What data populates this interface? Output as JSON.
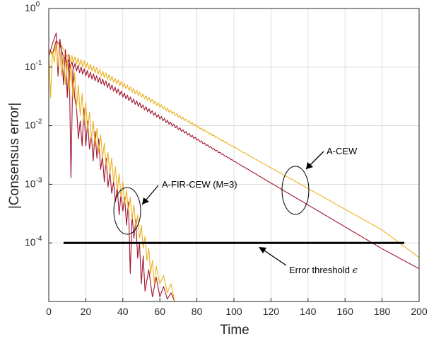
{
  "chart_data": {
    "type": "line",
    "xlabel": "Time",
    "ylabel": "|Consensus error|",
    "xlim": [
      0,
      200
    ],
    "ylim": [
      1e-05,
      1
    ],
    "yscale": "log",
    "grid": true,
    "x_ticks": [
      "0",
      "20",
      "40",
      "60",
      "80",
      "100",
      "120",
      "140",
      "160",
      "180",
      "200"
    ],
    "y_ticks": [
      {
        "base": "10",
        "exp": "0",
        "value": 1
      },
      {
        "base": "10",
        "exp": "-1",
        "value": 0.1
      },
      {
        "base": "10",
        "exp": "-2",
        "value": 0.01
      },
      {
        "base": "10",
        "exp": "-3",
        "value": 0.001
      },
      {
        "base": "10",
        "exp": "-4",
        "value": 0.0001
      }
    ],
    "colors": {
      "red": "#a2142f",
      "yellow": "#edb120",
      "threshold": "#000000",
      "grid": "#d9d9d9"
    },
    "series": [
      {
        "color": "#a2142f",
        "points": [
          [
            0,
            0.2
          ],
          [
            2,
            0.17
          ],
          [
            4,
            0.28
          ],
          [
            6,
            0.24
          ],
          [
            8,
            0.15
          ],
          [
            10,
            0.12
          ],
          [
            20,
            0.08
          ],
          [
            30,
            0.054
          ],
          [
            40,
            0.034
          ],
          [
            60,
            0.0139
          ],
          [
            80,
            0.00587
          ],
          [
            100,
            0.00249
          ],
          [
            120,
            0.00105
          ],
          [
            140,
            0.000444
          ],
          [
            160,
            0.000188
          ],
          [
            180,
            7.94e-05
          ],
          [
            200,
            3.63e-05
          ]
        ],
        "ripple": 0.06
      },
      {
        "color": "#edb120",
        "points": [
          [
            0,
            0.2
          ],
          [
            2,
            0.16
          ],
          [
            4,
            0.24
          ],
          [
            6,
            0.26
          ],
          [
            8,
            0.2
          ],
          [
            10,
            0.15
          ],
          [
            20,
            0.11
          ],
          [
            30,
            0.074
          ],
          [
            40,
            0.05
          ],
          [
            60,
            0.0221
          ],
          [
            80,
            0.00977
          ],
          [
            100,
            0.00432
          ],
          [
            120,
            0.00191
          ],
          [
            140,
            0.000848
          ],
          [
            160,
            0.000375
          ],
          [
            180,
            0.000166
          ],
          [
            200,
            5.62e-05
          ]
        ],
        "ripple": 0.06
      },
      {
        "color": "#a2142f",
        "points": [
          [
            0,
            0.15
          ],
          [
            2,
            0.25
          ],
          [
            4,
            0.38
          ],
          [
            5,
            0.07
          ],
          [
            6,
            0.3
          ],
          [
            7,
            0.18
          ],
          [
            8,
            0.05
          ],
          [
            9,
            0.2
          ],
          [
            10,
            0.03
          ],
          [
            11,
            0.16
          ],
          [
            12,
            0.0013
          ],
          [
            13,
            0.09
          ],
          [
            14,
            0.03
          ],
          [
            15,
            0.02
          ],
          [
            16,
            0.006
          ],
          [
            17,
            0.012
          ],
          [
            18,
            0.0045
          ],
          [
            19,
            0.02
          ],
          [
            20,
            0.0045
          ],
          [
            21,
            0.012
          ],
          [
            22,
            0.004
          ],
          [
            23,
            0.007
          ],
          [
            24,
            0.0025
          ],
          [
            25,
            0.008
          ],
          [
            26,
            0.0028
          ],
          [
            27,
            0.006
          ],
          [
            28,
            0.0018
          ],
          [
            29,
            0.003
          ],
          [
            30,
            0.0011
          ],
          [
            31,
            0.0028
          ],
          [
            32,
            0.0009
          ],
          [
            33,
            0.0016
          ],
          [
            34,
            0.0007
          ],
          [
            35,
            0.0011
          ],
          [
            36,
            0.0005
          ],
          [
            37,
            0.0009
          ],
          [
            38,
            0.0003
          ],
          [
            39,
            0.0007
          ],
          [
            40,
            0.00035
          ],
          [
            41,
            0.0006
          ],
          [
            42,
            0.0002
          ],
          [
            43,
            0.0005
          ],
          [
            44,
            3e-05
          ],
          [
            45,
            0.0003
          ],
          [
            46,
            0.00012
          ],
          [
            47,
            0.00025
          ],
          [
            48,
            5.5e-05
          ],
          [
            49,
            0.0001
          ],
          [
            50,
            2e-05
          ],
          [
            51,
            6e-05
          ],
          [
            52,
            1.5e-05
          ],
          [
            54,
            3.5e-05
          ],
          [
            56,
            1.2e-05
          ],
          [
            58,
            2.6e-05
          ],
          [
            60,
            1.2e-05
          ],
          [
            62,
            1.8e-05
          ],
          [
            64,
            1.1e-05
          ],
          [
            66,
            1.4e-05
          ],
          [
            68,
            1e-05
          ]
        ]
      },
      {
        "color": "#edb120",
        "points": [
          [
            0,
            0.2
          ],
          [
            1,
            0.03
          ],
          [
            2,
            0.18
          ],
          [
            3,
            0.12
          ],
          [
            4,
            0.26
          ],
          [
            5,
            0.1
          ],
          [
            6,
            0.2
          ],
          [
            7,
            0.07
          ],
          [
            8,
            0.16
          ],
          [
            9,
            0.05
          ],
          [
            10,
            0.14
          ],
          [
            11,
            0.04
          ],
          [
            12,
            0.11
          ],
          [
            13,
            0.03
          ],
          [
            14,
            0.08
          ],
          [
            15,
            0.02
          ],
          [
            16,
            0.05
          ],
          [
            17,
            0.015
          ],
          [
            18,
            0.035
          ],
          [
            19,
            0.011
          ],
          [
            20,
            0.025
          ],
          [
            21,
            0.008
          ],
          [
            22,
            0.017
          ],
          [
            23,
            0.006
          ],
          [
            24,
            0.012
          ],
          [
            25,
            0.0045
          ],
          [
            26,
            0.009
          ],
          [
            27,
            0.0035
          ],
          [
            28,
            0.007
          ],
          [
            29,
            0.0028
          ],
          [
            30,
            0.005
          ],
          [
            31,
            0.002
          ],
          [
            32,
            0.0035
          ],
          [
            33,
            0.0015
          ],
          [
            34,
            0.0028
          ],
          [
            35,
            0.0011
          ],
          [
            36,
            0.002
          ],
          [
            37,
            0.0008
          ],
          [
            38,
            0.0015
          ],
          [
            39,
            0.0006
          ],
          [
            40,
            0.0011
          ],
          [
            41,
            0.00045
          ],
          [
            42,
            0.0008
          ],
          [
            43,
            0.00035
          ],
          [
            44,
            0.0006
          ],
          [
            45,
            0.00025
          ],
          [
            46,
            0.00045
          ],
          [
            47,
            0.00018
          ],
          [
            48,
            0.0003
          ],
          [
            49,
            0.00012
          ],
          [
            50,
            0.0002
          ],
          [
            51,
            8e-05
          ],
          [
            52,
            0.00013
          ],
          [
            53,
            5e-05
          ],
          [
            54,
            8e-05
          ],
          [
            55,
            3e-05
          ],
          [
            56,
            5e-05
          ],
          [
            57,
            2e-05
          ],
          [
            58,
            4e-05
          ],
          [
            60,
            2e-05
          ],
          [
            62,
            2.8e-05
          ],
          [
            64,
            1.4e-05
          ],
          [
            66,
            2e-05
          ],
          [
            68,
            1e-05
          ]
        ]
      }
    ],
    "threshold": {
      "x": [
        8,
        192
      ],
      "y": 0.0001
    },
    "annotations": {
      "a_cew": "A-CEW",
      "a_fir_cew": "A-FIR-CEW (M=3)",
      "threshold_prefix": "Error threshold ",
      "threshold_symbol": "ϵ"
    }
  }
}
